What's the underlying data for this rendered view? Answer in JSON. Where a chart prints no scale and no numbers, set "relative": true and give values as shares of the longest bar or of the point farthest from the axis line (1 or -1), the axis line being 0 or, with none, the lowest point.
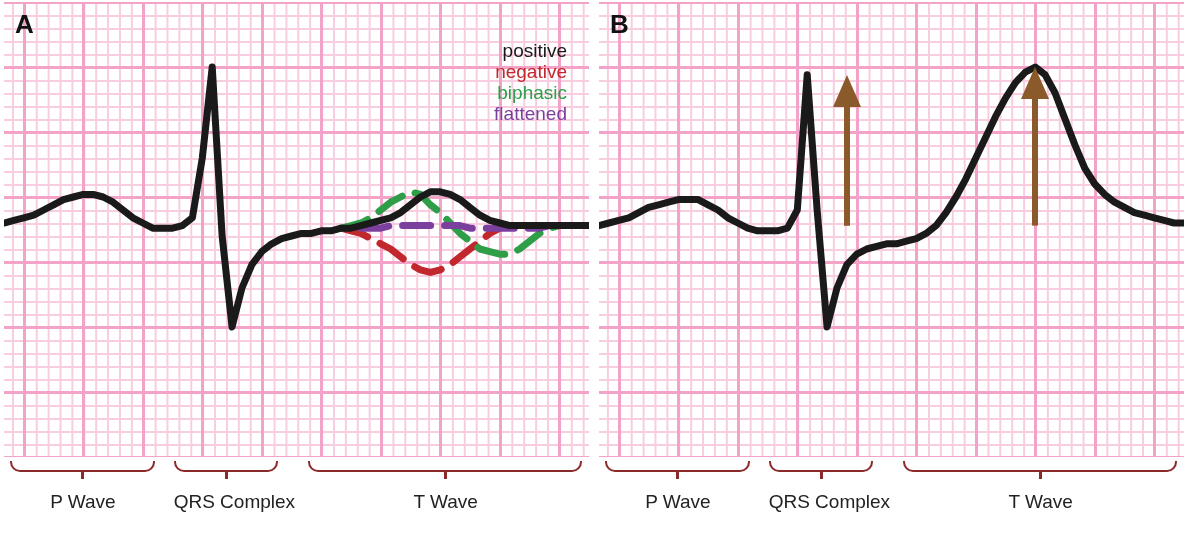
{
  "chart_data": [
    {
      "type": "line",
      "title": "A",
      "relative": true,
      "grid": true,
      "legend": "top right",
      "marker": "none",
      "categories": [
        null,
        null,
        null,
        null,
        null,
        null,
        null,
        null,
        null,
        null,
        null,
        null,
        null,
        null,
        null,
        null,
        null,
        null,
        null,
        null,
        null,
        null,
        null,
        null,
        null,
        null,
        null,
        null,
        null,
        null,
        null,
        null,
        null,
        null,
        null,
        null,
        null,
        null,
        null,
        null,
        null,
        null,
        null,
        null,
        null,
        null,
        null,
        null,
        null,
        null,
        null,
        null,
        null,
        null,
        null,
        null,
        null,
        null,
        null,
        null
      ],
      "series": [
        {
          "name": "positive",
          "color": "#1a1a1a",
          "line_style": "solid",
          "values": [
            0.4,
            0.41,
            0.42,
            0.43,
            0.45,
            0.47,
            0.49,
            0.5,
            0.51,
            0.51,
            0.5,
            0.48,
            0.45,
            0.42,
            0.4,
            0.38,
            0.38,
            0.38,
            0.39,
            0.42,
            0.65,
            1.0,
            0.35,
            0.0,
            0.15,
            0.24,
            0.29,
            0.32,
            0.34,
            0.35,
            0.36,
            0.36,
            0.37,
            0.37,
            0.38,
            0.38,
            0.39,
            0.4,
            0.41,
            0.42,
            0.44,
            0.47,
            0.5,
            0.52,
            0.52,
            0.51,
            0.49,
            0.46,
            0.43,
            0.41,
            0.4,
            0.39,
            0.39,
            0.39,
            0.39,
            0.39,
            0.39,
            0.39,
            0.39,
            0.39
          ]
        },
        {
          "name": "negative",
          "color": "#c1272d",
          "line_style": "dashed",
          "values": [
            null,
            null,
            null,
            null,
            null,
            null,
            null,
            null,
            null,
            null,
            null,
            null,
            null,
            null,
            null,
            null,
            null,
            null,
            null,
            null,
            null,
            null,
            null,
            null,
            null,
            null,
            null,
            null,
            null,
            null,
            null,
            null,
            null,
            null,
            0.38,
            0.37,
            0.36,
            0.34,
            0.32,
            0.3,
            0.27,
            0.24,
            0.22,
            0.21,
            0.22,
            0.24,
            0.27,
            0.3,
            0.33,
            0.36,
            0.38,
            null,
            null,
            null,
            null,
            null,
            null,
            null,
            null,
            null
          ]
        },
        {
          "name": "biphasic",
          "color": "#2e9e48",
          "line_style": "dashed",
          "values": [
            null,
            null,
            null,
            null,
            null,
            null,
            null,
            null,
            null,
            null,
            null,
            null,
            null,
            null,
            null,
            null,
            null,
            null,
            null,
            null,
            null,
            null,
            null,
            null,
            null,
            null,
            null,
            null,
            null,
            null,
            null,
            null,
            null,
            null,
            0.38,
            0.39,
            0.4,
            0.42,
            0.45,
            0.48,
            0.5,
            0.52,
            0.51,
            0.47,
            0.44,
            0.4,
            0.36,
            0.33,
            0.3,
            0.29,
            0.28,
            0.28,
            0.3,
            0.33,
            0.36,
            0.38,
            0.39,
            null,
            null,
            null
          ]
        },
        {
          "name": "flattened",
          "color": "#7b3f9e",
          "line_style": "dashed",
          "values": [
            null,
            null,
            null,
            null,
            null,
            null,
            null,
            null,
            null,
            null,
            null,
            null,
            null,
            null,
            null,
            null,
            null,
            null,
            null,
            null,
            null,
            null,
            null,
            null,
            null,
            null,
            null,
            null,
            null,
            null,
            null,
            null,
            null,
            null,
            null,
            null,
            0.38,
            0.38,
            0.38,
            0.39,
            0.39,
            0.39,
            0.39,
            0.39,
            0.39,
            0.39,
            0.39,
            0.38,
            0.38,
            0.38,
            0.38,
            0.38,
            0.38,
            0.38,
            0.38,
            0.39,
            null,
            null,
            null,
            null
          ]
        }
      ],
      "annotations": [
        "P Wave",
        "QRS Complex",
        "T Wave"
      ]
    },
    {
      "type": "line",
      "title": "B",
      "relative": true,
      "grid": true,
      "marker": "none",
      "categories": [
        null,
        null,
        null,
        null,
        null,
        null,
        null,
        null,
        null,
        null,
        null,
        null,
        null,
        null,
        null,
        null,
        null,
        null,
        null,
        null,
        null,
        null,
        null,
        null,
        null,
        null,
        null,
        null,
        null,
        null,
        null,
        null,
        null,
        null,
        null,
        null,
        null,
        null,
        null,
        null,
        null,
        null,
        null,
        null,
        null,
        null,
        null,
        null,
        null,
        null,
        null,
        null,
        null,
        null,
        null,
        null,
        null,
        null,
        null,
        null
      ],
      "series": [
        {
          "color": "#1a1a1a",
          "line_style": "solid",
          "values": [
            0.39,
            0.4,
            0.41,
            0.42,
            0.44,
            0.46,
            0.47,
            0.48,
            0.49,
            0.49,
            0.49,
            0.47,
            0.45,
            0.42,
            0.4,
            0.38,
            0.37,
            0.37,
            0.37,
            0.38,
            0.45,
            0.97,
            0.45,
            0.0,
            0.15,
            0.24,
            0.28,
            0.3,
            0.31,
            0.32,
            0.32,
            0.33,
            0.34,
            0.36,
            0.39,
            0.44,
            0.5,
            0.57,
            0.65,
            0.73,
            0.81,
            0.88,
            0.94,
            0.98,
            1.0,
            0.97,
            0.9,
            0.8,
            0.7,
            0.61,
            0.55,
            0.51,
            0.48,
            0.46,
            0.44,
            0.43,
            0.42,
            0.41,
            0.4,
            0.4
          ]
        }
      ],
      "annotations": [
        "P Wave",
        "QRS Complex",
        "T Wave"
      ]
    }
  ]
}
